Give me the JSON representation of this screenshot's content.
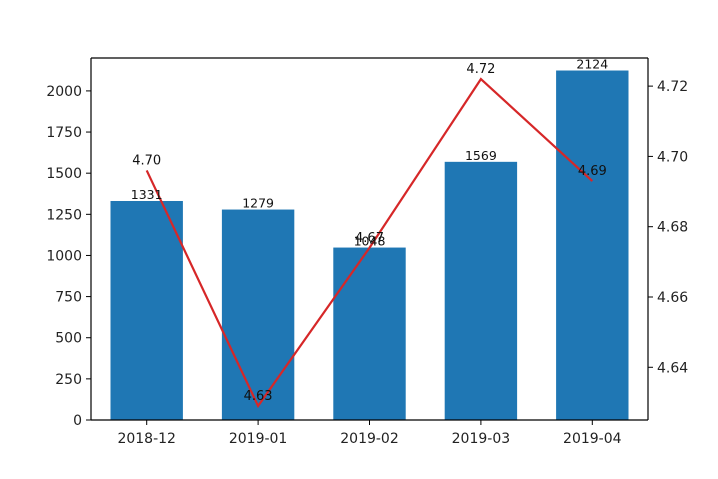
{
  "chart_data": {
    "type": "bar",
    "categories": [
      "2018-12",
      "2019-01",
      "2019-02",
      "2019-03",
      "2019-04"
    ],
    "series": [
      {
        "type": "bar",
        "axis": "left",
        "color": "#1f77b4",
        "values": [
          1331,
          1279,
          1048,
          1569,
          2124
        ],
        "labels": [
          "1331",
          "1279",
          "1048",
          "1569",
          "2124"
        ]
      },
      {
        "type": "line",
        "axis": "right",
        "color": "#d62728",
        "values": [
          4.696,
          4.629,
          4.674,
          4.722,
          4.693
        ],
        "labels": [
          "4.70",
          "4.63",
          "4.67",
          "4.72",
          "4.69"
        ]
      }
    ],
    "y_left": {
      "lim": [
        0,
        2200
      ],
      "ticks": [
        0,
        250,
        500,
        750,
        1000,
        1250,
        1500,
        1750,
        2000
      ],
      "tick_labels": [
        "0",
        "250",
        "500",
        "750",
        "1000",
        "1250",
        "1500",
        "1750",
        "2000"
      ]
    },
    "y_right": {
      "lim": [
        4.625,
        4.728
      ],
      "ticks": [
        4.64,
        4.66,
        4.68,
        4.7,
        4.72
      ],
      "tick_labels": [
        "4.64",
        "4.66",
        "4.68",
        "4.70",
        "4.72"
      ]
    },
    "title": "",
    "xlabel": "",
    "ylabel": "",
    "grid": false,
    "legend": "none"
  }
}
